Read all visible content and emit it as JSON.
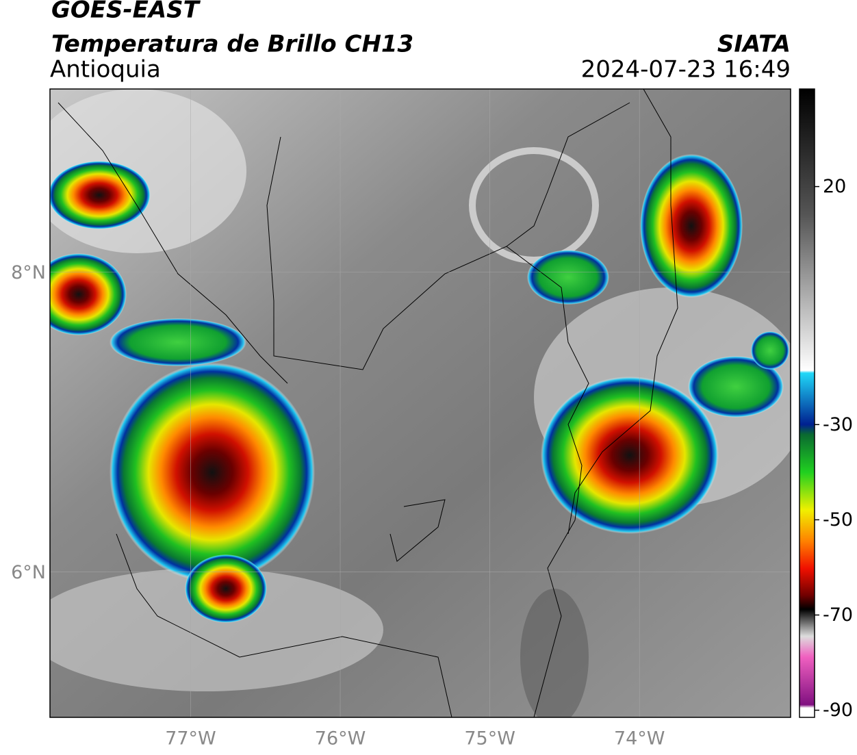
{
  "header": {
    "title": "GOES-EAST",
    "subtitle": "Temperatura de Brillo CH13",
    "region": "Antioquia",
    "source": "SIATA",
    "datetime": "2024-07-23 16:49"
  },
  "map": {
    "xlim": [
      -77.94,
      -72.99
    ],
    "ylim": [
      5.03,
      9.22
    ],
    "lon_ticks": [
      {
        "value": -77,
        "label": "77°W"
      },
      {
        "value": -76,
        "label": "76°W"
      },
      {
        "value": -75,
        "label": "75°W"
      },
      {
        "value": -74,
        "label": "74°W"
      }
    ],
    "lat_ticks": [
      {
        "value": 8,
        "label": "8°N"
      },
      {
        "value": 6,
        "label": "6°N"
      }
    ]
  },
  "colorbar": {
    "lim": [
      -91.5,
      40.5
    ],
    "ticks": [
      20,
      -30,
      -50,
      -70,
      -90
    ]
  }
}
